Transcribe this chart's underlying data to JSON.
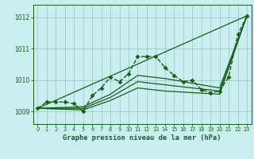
{
  "title": "Graphe pression niveau de la mer (hPa)",
  "bg_color": "#c8eef0",
  "grid_color": "#a0ccc8",
  "line_color": "#1a5c1a",
  "xlim": [
    -0.5,
    23.5
  ],
  "ylim": [
    1008.6,
    1012.4
  ],
  "yticks": [
    1009,
    1010,
    1011,
    1012
  ],
  "xticks": [
    0,
    1,
    2,
    3,
    4,
    5,
    6,
    7,
    8,
    9,
    10,
    11,
    12,
    13,
    14,
    15,
    16,
    17,
    18,
    19,
    20,
    21,
    22,
    23
  ],
  "series": [
    {
      "x": [
        0,
        1,
        2,
        3,
        4,
        5,
        6,
        7,
        8,
        9,
        10,
        11,
        12,
        13,
        14,
        15,
        16,
        17,
        18,
        19,
        20,
        21,
        22,
        23
      ],
      "y": [
        1009.1,
        1009.3,
        1009.3,
        1009.3,
        1009.25,
        1009.0,
        1009.5,
        1009.75,
        1010.1,
        1009.95,
        1010.2,
        1010.75,
        1010.75,
        1010.75,
        1010.4,
        1010.15,
        1009.95,
        1010.0,
        1009.7,
        1009.6,
        1009.65,
        1010.1,
        1011.45,
        1012.05
      ],
      "marker": "D",
      "markersize": 2.5,
      "linewidth": 1.0,
      "linestyle": "--"
    },
    {
      "x": [
        0,
        23
      ],
      "y": [
        1009.1,
        1012.05
      ],
      "marker": null,
      "markersize": 0,
      "linewidth": 0.9,
      "linestyle": "-"
    },
    {
      "x": [
        0,
        5,
        8,
        11,
        14,
        17,
        20,
        23
      ],
      "y": [
        1009.1,
        1009.15,
        1009.55,
        1010.15,
        1010.05,
        1009.9,
        1009.75,
        1012.05
      ],
      "marker": null,
      "markersize": 0,
      "linewidth": 0.9,
      "linestyle": "-"
    },
    {
      "x": [
        0,
        5,
        8,
        11,
        14,
        17,
        20,
        23
      ],
      "y": [
        1009.1,
        1009.1,
        1009.45,
        1009.95,
        1009.85,
        1009.75,
        1009.65,
        1012.05
      ],
      "marker": null,
      "markersize": 0,
      "linewidth": 0.9,
      "linestyle": "-"
    },
    {
      "x": [
        0,
        5,
        8,
        11,
        14,
        17,
        20,
        23
      ],
      "y": [
        1009.1,
        1009.05,
        1009.35,
        1009.75,
        1009.65,
        1009.6,
        1009.55,
        1012.05
      ],
      "marker": null,
      "markersize": 0,
      "linewidth": 0.9,
      "linestyle": "-"
    }
  ]
}
